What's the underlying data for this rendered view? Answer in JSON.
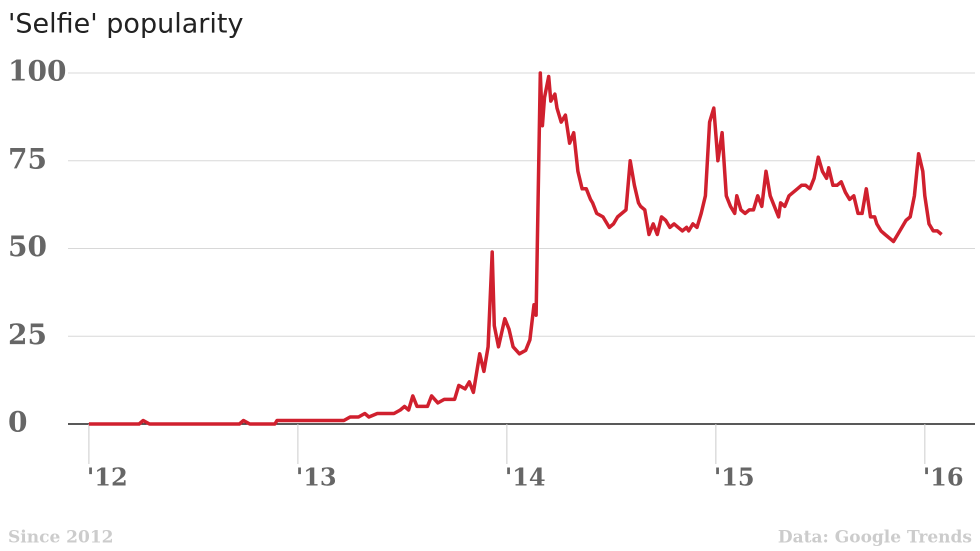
{
  "chart_data": {
    "type": "line",
    "title": "'Selfie' popularity",
    "note_left": "Since 2012",
    "source": "Data: Google Trends",
    "color": "#d0202e",
    "grid": true,
    "xlim": [
      2011.9,
      2016.24
    ],
    "xticks": [
      {
        "value": 2012,
        "label": "'12"
      },
      {
        "value": 2013,
        "label": "'13"
      },
      {
        "value": 2014,
        "label": "'14"
      },
      {
        "value": 2015,
        "label": "'15"
      },
      {
        "value": 2016,
        "label": "'16"
      }
    ],
    "ylim": [
      0,
      100
    ],
    "yticks": [
      0,
      25,
      50,
      75,
      100
    ],
    "x": [
      2012.0,
      2012.24,
      2012.26,
      2012.29,
      2012.72,
      2012.74,
      2012.77,
      2012.89,
      2012.9,
      2013.22,
      2013.25,
      2013.29,
      2013.32,
      2013.34,
      2013.38,
      2013.46,
      2013.49,
      2013.51,
      2013.53,
      2013.55,
      2013.57,
      2013.62,
      2013.64,
      2013.67,
      2013.7,
      2013.75,
      2013.77,
      2013.8,
      2013.82,
      2013.84,
      2013.87,
      2013.89,
      2013.91,
      2013.93,
      2013.94,
      2013.96,
      2013.99,
      2014.01,
      2014.03,
      2014.06,
      2014.09,
      2014.11,
      2014.13,
      2014.14,
      2014.16,
      2014.17,
      2014.18,
      2014.2,
      2014.21,
      2014.23,
      2014.24,
      2014.26,
      2014.28,
      2014.3,
      2014.32,
      2014.34,
      2014.36,
      2014.38,
      2014.4,
      2014.41,
      2014.43,
      2014.46,
      2014.49,
      2014.51,
      2014.53,
      2014.55,
      2014.57,
      2014.59,
      2014.61,
      2014.63,
      2014.64,
      2014.66,
      2014.68,
      2014.7,
      2014.72,
      2014.74,
      2014.76,
      2014.78,
      2014.8,
      2014.82,
      2014.84,
      2014.86,
      2014.87,
      2014.89,
      2014.91,
      2014.93,
      2014.95,
      2014.97,
      2014.99,
      2015.01,
      2015.03,
      2015.05,
      2015.07,
      2015.09,
      2015.1,
      2015.12,
      2015.14,
      2015.16,
      2015.18,
      2015.2,
      2015.22,
      2015.24,
      2015.26,
      2015.28,
      2015.3,
      2015.31,
      2015.33,
      2015.35,
      2015.37,
      2015.39,
      2015.41,
      2015.43,
      2015.45,
      2015.47,
      2015.49,
      2015.51,
      2015.53,
      2015.54,
      2015.56,
      2015.58,
      2015.6,
      2015.62,
      2015.64,
      2015.66,
      2015.68,
      2015.7,
      2015.72,
      2015.74,
      2015.76,
      2015.77,
      2015.79,
      2015.81,
      2015.83,
      2015.85,
      2015.87,
      2015.89,
      2015.91,
      2015.93,
      2015.95,
      2015.97,
      2015.99,
      2016.0,
      2016.02,
      2016.04,
      2016.06,
      2016.08
    ],
    "values": [
      0,
      0,
      1,
      0,
      0,
      1,
      0,
      0,
      1,
      1,
      2,
      2,
      3,
      2,
      3,
      3,
      4,
      5,
      4,
      8,
      5,
      5,
      8,
      6,
      7,
      7,
      11,
      10,
      12,
      9,
      20,
      15,
      22,
      49,
      28,
      22,
      30,
      27,
      22,
      20,
      21,
      24,
      34,
      31,
      100,
      85,
      93,
      99,
      92,
      94,
      90,
      86,
      88,
      80,
      83,
      72,
      67,
      67,
      64,
      63,
      60,
      59,
      56,
      57,
      59,
      60,
      61,
      75,
      68,
      63,
      62,
      61,
      54,
      57,
      54,
      59,
      58,
      56,
      57,
      56,
      55,
      56,
      55,
      57,
      56,
      60,
      65,
      86,
      90,
      75,
      83,
      65,
      62,
      60,
      65,
      61,
      60,
      61,
      61,
      65,
      62,
      72,
      65,
      62,
      59,
      63,
      62,
      65,
      66,
      67,
      68,
      68,
      67,
      70,
      76,
      72,
      70,
      73,
      68,
      68,
      69,
      66,
      64,
      65,
      60,
      60,
      67,
      59,
      59,
      57,
      55,
      54,
      53,
      52,
      54,
      56,
      58,
      59,
      65,
      77,
      72,
      65,
      57,
      55,
      55,
      54
    ]
  }
}
